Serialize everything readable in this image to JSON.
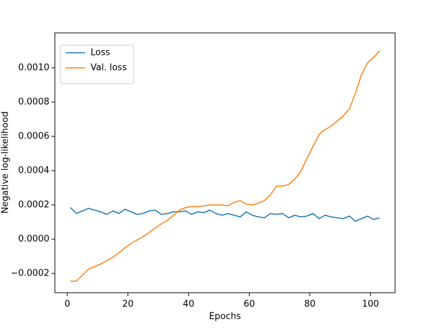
{
  "chart_data": {
    "type": "line",
    "x_label": "Epochs",
    "y_label": "Negative log-likelihood",
    "x": [
      1,
      3,
      5,
      7,
      9,
      11,
      13,
      15,
      17,
      19,
      21,
      23,
      25,
      27,
      29,
      31,
      33,
      35,
      37,
      39,
      41,
      43,
      45,
      47,
      49,
      51,
      53,
      55,
      57,
      59,
      61,
      63,
      65,
      67,
      69,
      71,
      73,
      75,
      77,
      79,
      81,
      83,
      85,
      87,
      89,
      91,
      93,
      95,
      97,
      99,
      101,
      103
    ],
    "series": [
      {
        "name": "Loss",
        "color": "#1f77b4",
        "values": [
          0.000185,
          0.00015,
          0.000165,
          0.00018,
          0.00017,
          0.00016,
          0.000145,
          0.000165,
          0.00015,
          0.000175,
          0.00016,
          0.000145,
          0.00015,
          0.000165,
          0.00017,
          0.000145,
          0.00015,
          0.00016,
          0.00016,
          0.000165,
          0.000145,
          0.00016,
          0.000155,
          0.00017,
          0.00015,
          0.00014,
          0.00015,
          0.00014,
          0.00013,
          0.00016,
          0.00014,
          0.00013,
          0.000125,
          0.00015,
          0.000145,
          0.00015,
          0.000125,
          0.00014,
          0.00013,
          0.000135,
          0.00015,
          0.00012,
          0.00014,
          0.00013,
          0.000125,
          0.00012,
          0.000135,
          0.000105,
          0.00012,
          0.000135,
          0.000115,
          0.000125
        ]
      },
      {
        "name": "Val. loss",
        "color": "#ff7f0e",
        "values": [
          -0.000245,
          -0.000245,
          -0.00021,
          -0.000175,
          -0.00016,
          -0.000145,
          -0.000125,
          -0.000105,
          -8e-05,
          -5e-05,
          -2.5e-05,
          -5e-06,
          1.5e-05,
          4e-05,
          6.5e-05,
          9e-05,
          0.00011,
          0.00014,
          0.00017,
          0.000185,
          0.00019,
          0.00019,
          0.000195,
          0.0002,
          0.0002,
          0.0002,
          0.000195,
          0.000215,
          0.000225,
          0.000205,
          0.0002,
          0.00021,
          0.000225,
          0.00026,
          0.00031,
          0.00031,
          0.00032,
          0.00035,
          0.000395,
          0.00047,
          0.00054,
          0.00061,
          0.00064,
          0.00066,
          0.00069,
          0.00072,
          0.00076,
          0.00085,
          0.00096,
          0.00103,
          0.00106,
          0.0011
        ]
      }
    ],
    "xlim": [
      -4.1,
      108.1
    ],
    "ylim": [
      -0.000312,
      0.001204
    ],
    "xticks": [
      0,
      20,
      40,
      60,
      80,
      100
    ],
    "yticks": [
      {
        "value": -0.0002,
        "label": "−0.0002"
      },
      {
        "value": 0,
        "label": "0.0000"
      },
      {
        "value": 0.0002,
        "label": "0.0002"
      },
      {
        "value": 0.0004,
        "label": "0.0004"
      },
      {
        "value": 0.0006,
        "label": "0.0006"
      },
      {
        "value": 0.0008,
        "label": "0.0008"
      },
      {
        "value": 0.001,
        "label": "0.0010"
      }
    ],
    "legend": "upper left",
    "grid": false
  }
}
